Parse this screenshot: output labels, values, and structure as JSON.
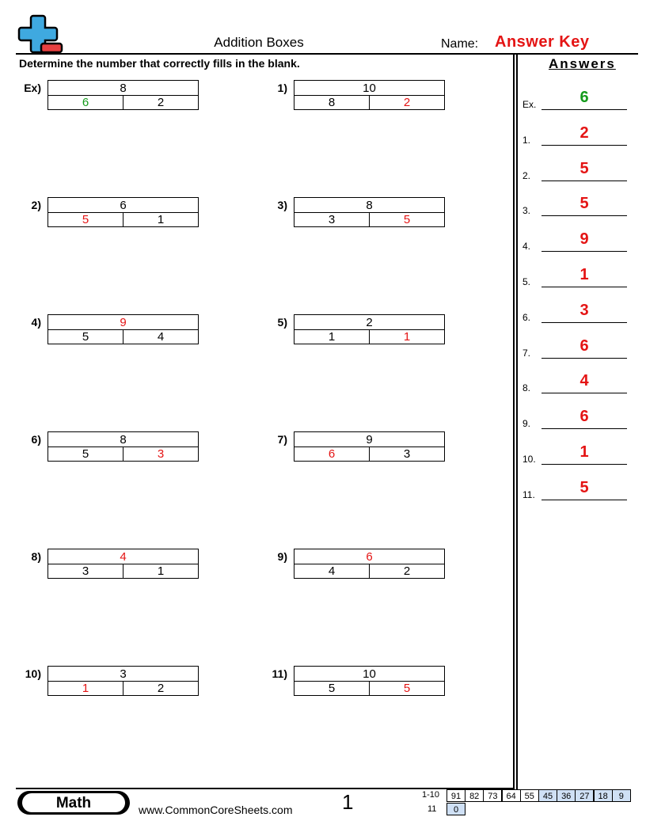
{
  "header": {
    "title": "Addition Boxes",
    "name_label": "Name:",
    "answer_key": "Answer Key",
    "instructions": "Determine the number that correctly fills in the blank.",
    "logo_icon": "plus-minus-logo-icon"
  },
  "colors": {
    "answer_red": "#e41414",
    "example_green": "#159b1c",
    "score_blue": "#cfe0f5"
  },
  "problems": [
    {
      "label": "Ex)",
      "top": "8",
      "left": "6",
      "right": "2",
      "blank": "left"
    },
    {
      "label": "1)",
      "top": "10",
      "left": "8",
      "right": "2",
      "blank": "right"
    },
    {
      "label": "2)",
      "top": "6",
      "left": "5",
      "right": "1",
      "blank": "left"
    },
    {
      "label": "3)",
      "top": "8",
      "left": "3",
      "right": "5",
      "blank": "right"
    },
    {
      "label": "4)",
      "top": "9",
      "left": "5",
      "right": "4",
      "blank": "top"
    },
    {
      "label": "5)",
      "top": "2",
      "left": "1",
      "right": "1",
      "blank": "right"
    },
    {
      "label": "6)",
      "top": "8",
      "left": "5",
      "right": "3",
      "blank": "right"
    },
    {
      "label": "7)",
      "top": "9",
      "left": "6",
      "right": "3",
      "blank": "left"
    },
    {
      "label": "8)",
      "top": "4",
      "left": "3",
      "right": "1",
      "blank": "top"
    },
    {
      "label": "9)",
      "top": "6",
      "left": "4",
      "right": "2",
      "blank": "top"
    },
    {
      "label": "10)",
      "top": "3",
      "left": "1",
      "right": "2",
      "blank": "left"
    },
    {
      "label": "11)",
      "top": "10",
      "left": "5",
      "right": "5",
      "blank": "right"
    }
  ],
  "answers": {
    "title": "Answers",
    "items": [
      {
        "label": "Ex.",
        "value": "6"
      },
      {
        "label": "1.",
        "value": "2"
      },
      {
        "label": "2.",
        "value": "5"
      },
      {
        "label": "3.",
        "value": "5"
      },
      {
        "label": "4.",
        "value": "9"
      },
      {
        "label": "5.",
        "value": "1"
      },
      {
        "label": "6.",
        "value": "3"
      },
      {
        "label": "7.",
        "value": "6"
      },
      {
        "label": "8.",
        "value": "4"
      },
      {
        "label": "9.",
        "value": "6"
      },
      {
        "label": "10.",
        "value": "1"
      },
      {
        "label": "11.",
        "value": "5"
      }
    ]
  },
  "footer": {
    "subject": "Math",
    "website": "www.CommonCoreSheets.com",
    "page_number": "1",
    "score_row1_label": "1-10",
    "score_row1": [
      "91",
      "82",
      "73",
      "64",
      "55",
      "45",
      "36",
      "27",
      "18",
      "9"
    ],
    "score_row2_label": "11",
    "score_row2": [
      "0"
    ]
  }
}
